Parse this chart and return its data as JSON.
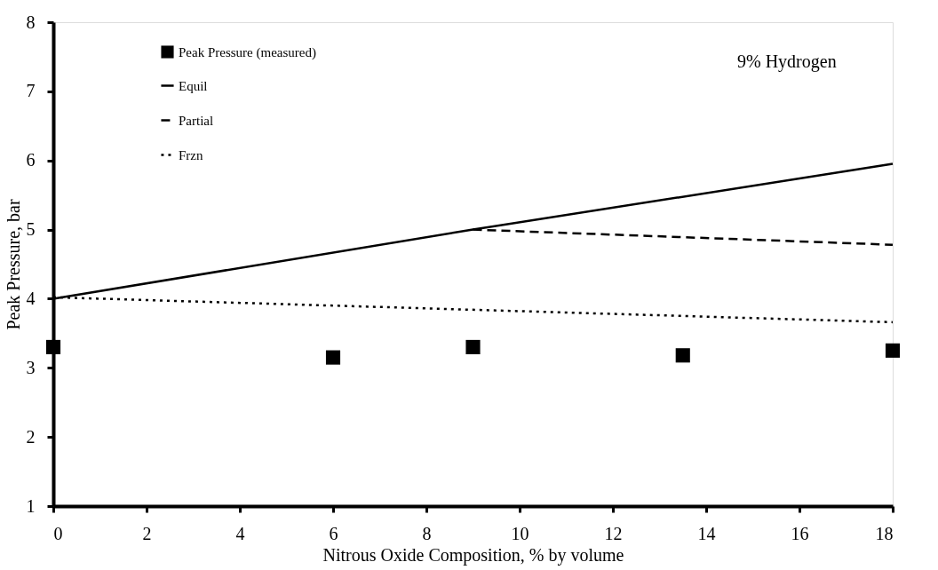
{
  "chart_data": {
    "type": "line",
    "xlabel": "Nitrous Oxide Composition, % by volume",
    "ylabel": "Peak Pressure, bar",
    "annotations": [
      "9% Hydrogen"
    ],
    "series": [
      {
        "name": "Peak Pressure (measured)",
        "type": "scatter",
        "marker": "square",
        "color": "#000000",
        "x": [
          0,
          6,
          9,
          13.5,
          18
        ],
        "values": [
          3.3,
          3.15,
          3.3,
          3.18,
          3.25
        ]
      },
      {
        "name": "Equil",
        "line_style": "solid",
        "color": "#000000",
        "x": [
          0,
          9,
          18
        ],
        "values": [
          4.0,
          5.0,
          5.95
        ]
      },
      {
        "name": "Partial",
        "line_style": "dashed",
        "color": "#000000",
        "x": [
          9,
          18
        ],
        "values": [
          5.0,
          4.78
        ]
      },
      {
        "name": "Frzn",
        "line_style": "dotted",
        "color": "#000000",
        "x": [
          0,
          18
        ],
        "values": [
          4.02,
          3.66
        ]
      }
    ],
    "xlim": [
      0,
      18
    ],
    "xticks": [
      0,
      2,
      4,
      6,
      8,
      10,
      12,
      14,
      16,
      18
    ],
    "ylim": [
      1,
      8
    ],
    "yticks": [
      1,
      2,
      3,
      4,
      5,
      6,
      7,
      8
    ],
    "grid": false,
    "legend": "top left"
  }
}
